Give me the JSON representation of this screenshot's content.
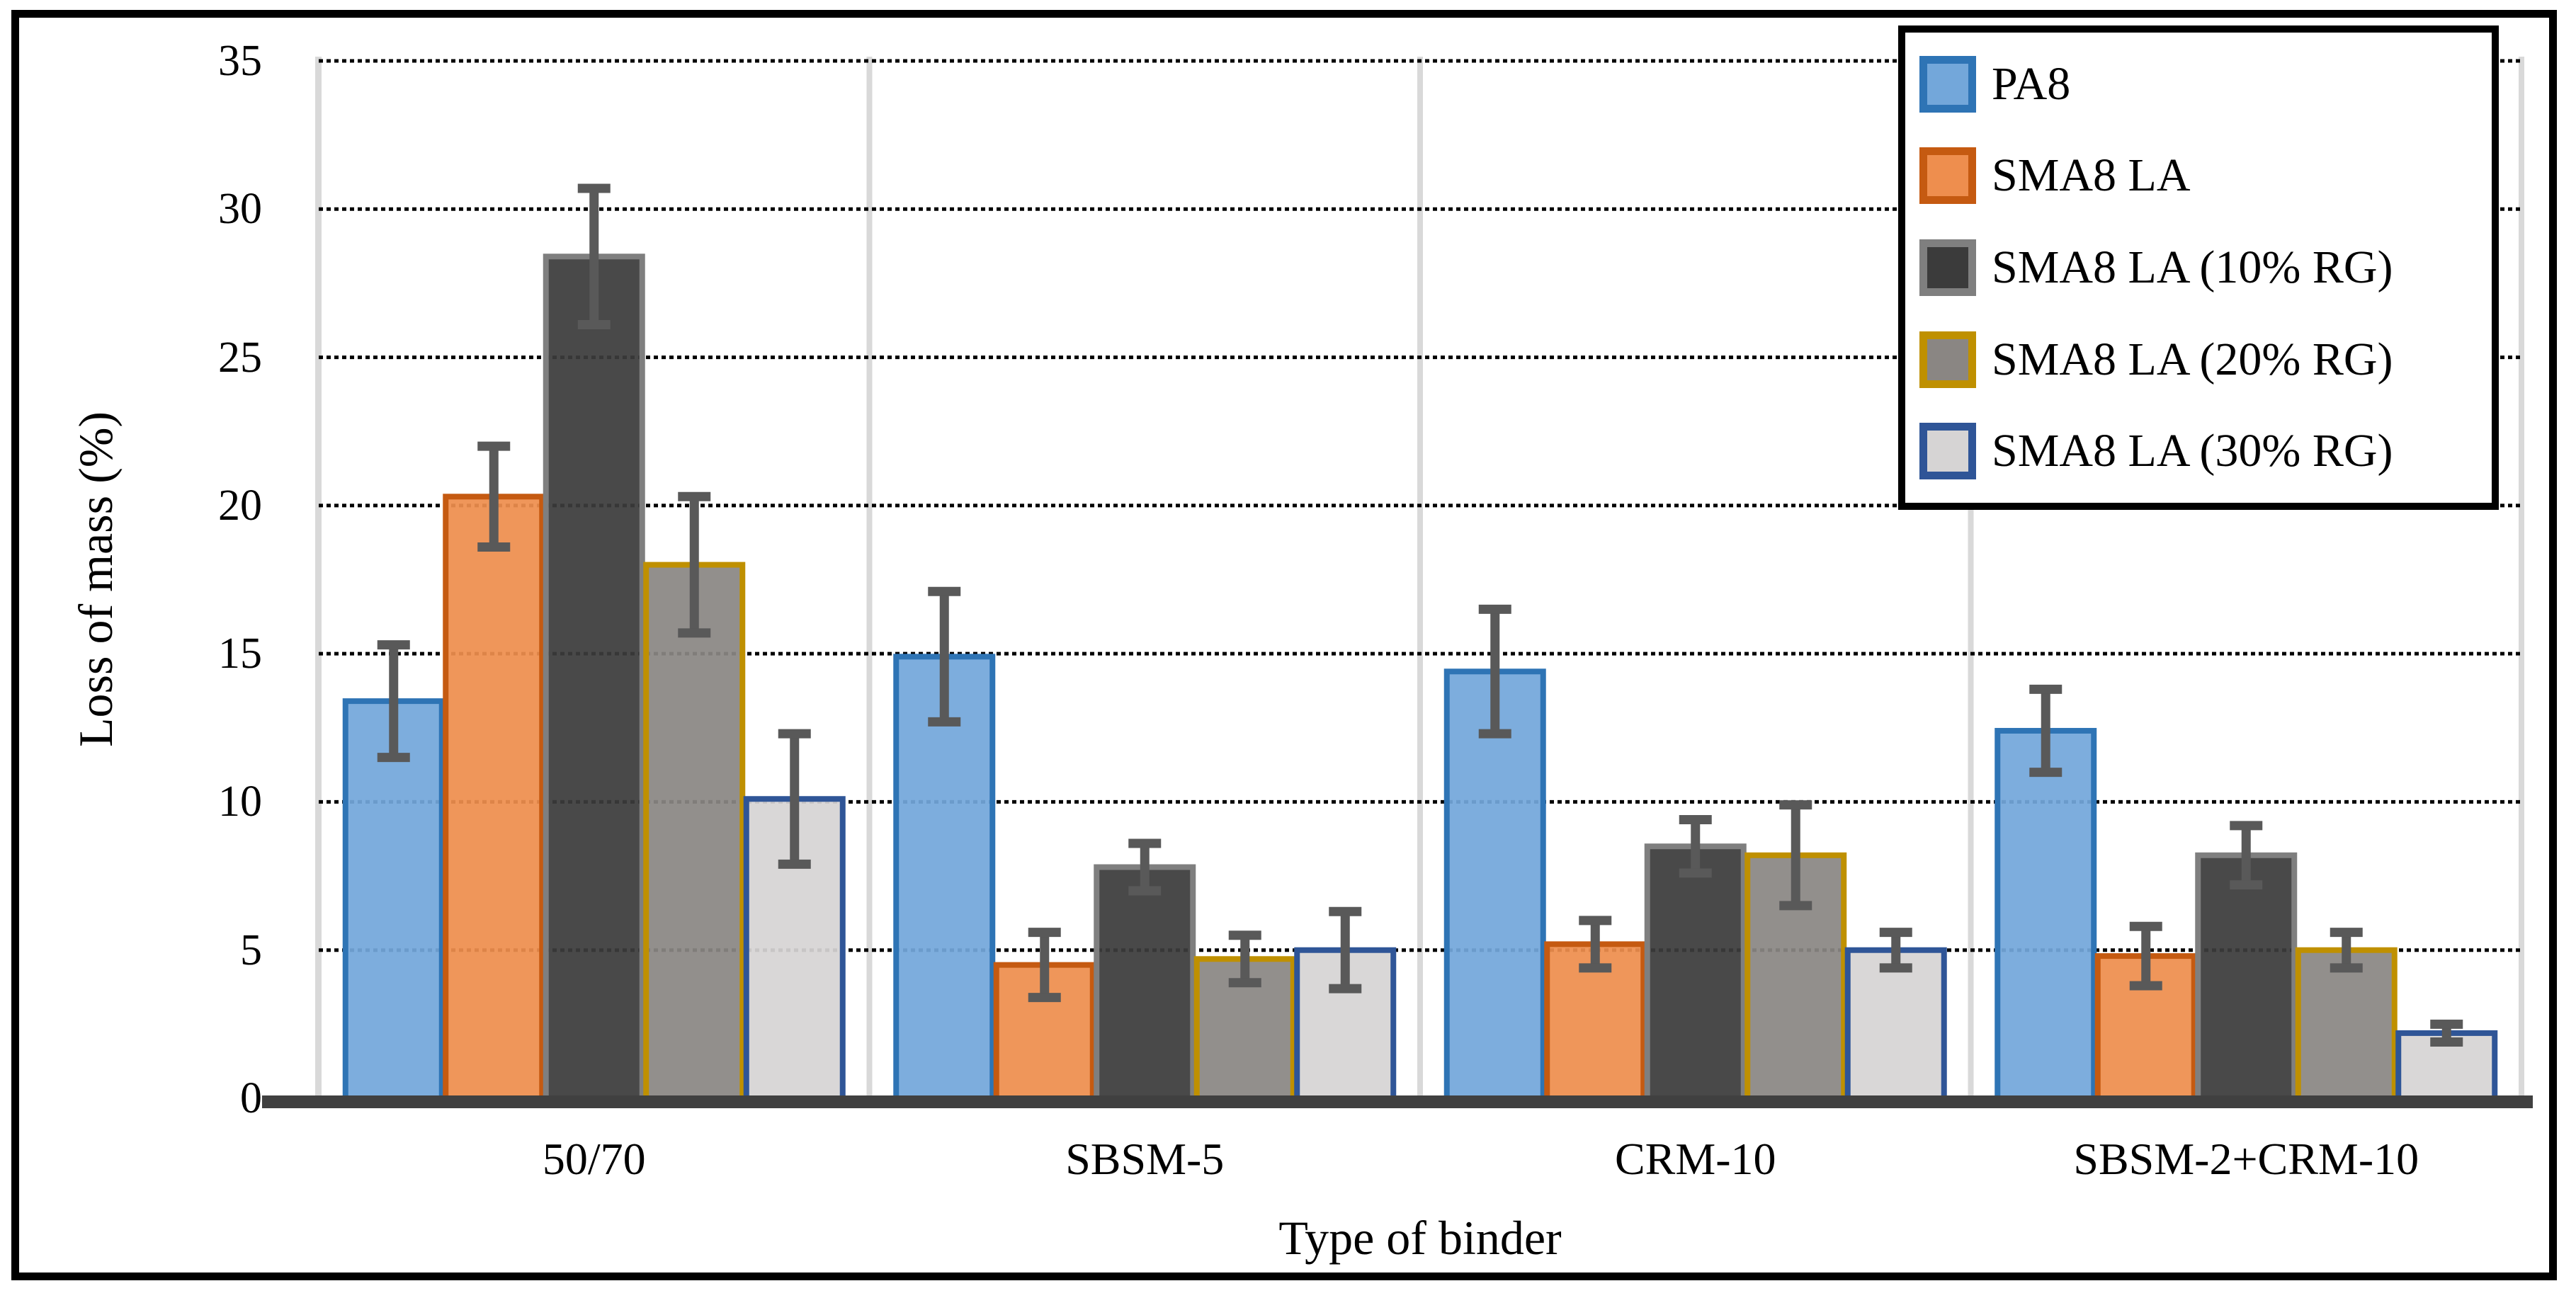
{
  "chart_data": {
    "type": "bar",
    "title": "",
    "xlabel": "Type of binder",
    "ylabel": "Loss of mass (%)",
    "ylim": [
      0,
      35
    ],
    "yticks": [
      0,
      5,
      10,
      15,
      20,
      25,
      30,
      35
    ],
    "grid": "horizontal dotted black lines at every 5 units",
    "legend_position": "top-right boxed",
    "categories": [
      "50/70",
      "SBSM-5",
      "CRM-10",
      "SBSM-2+CRM-10"
    ],
    "series": [
      {
        "name": "PA8",
        "fill": "#73A7DA",
        "border": "#2E74B5",
        "values": [
          13.4,
          14.9,
          14.4,
          12.4
        ],
        "errors": [
          1.9,
          2.2,
          2.1,
          1.4
        ]
      },
      {
        "name": "SMA8 LA",
        "fill": "#EE8E4E",
        "border": "#C55A11",
        "values": [
          20.3,
          4.5,
          5.2,
          4.8
        ],
        "errors": [
          1.7,
          1.1,
          0.8,
          1.0
        ]
      },
      {
        "name": "SMA8 LA (10% RG)",
        "fill": "#3B3B3B",
        "border": "#7F7F7F",
        "values": [
          28.4,
          7.8,
          8.5,
          8.2
        ],
        "errors": [
          2.3,
          0.8,
          0.9,
          1.0
        ]
      },
      {
        "name": "SMA8 LA (20% RG)",
        "fill": "#8A8683",
        "border": "#BF9000",
        "values": [
          18.0,
          4.7,
          8.2,
          5.0
        ],
        "errors": [
          2.3,
          0.8,
          1.7,
          0.6
        ]
      },
      {
        "name": "SMA8 LA (30% RG)",
        "fill": "#D6D4D4",
        "border": "#2F5597",
        "values": [
          10.1,
          5.0,
          5.0,
          2.2
        ],
        "errors": [
          2.2,
          1.3,
          0.6,
          0.3
        ]
      }
    ],
    "colors": {
      "error_bar": "#595959",
      "baseline_axis": "#404040",
      "gridline": "#000000",
      "vertical_separators": "#D9D9D9",
      "legend_border": "#000000",
      "figure_border": "#000000",
      "background": "#FFFFFF"
    }
  }
}
